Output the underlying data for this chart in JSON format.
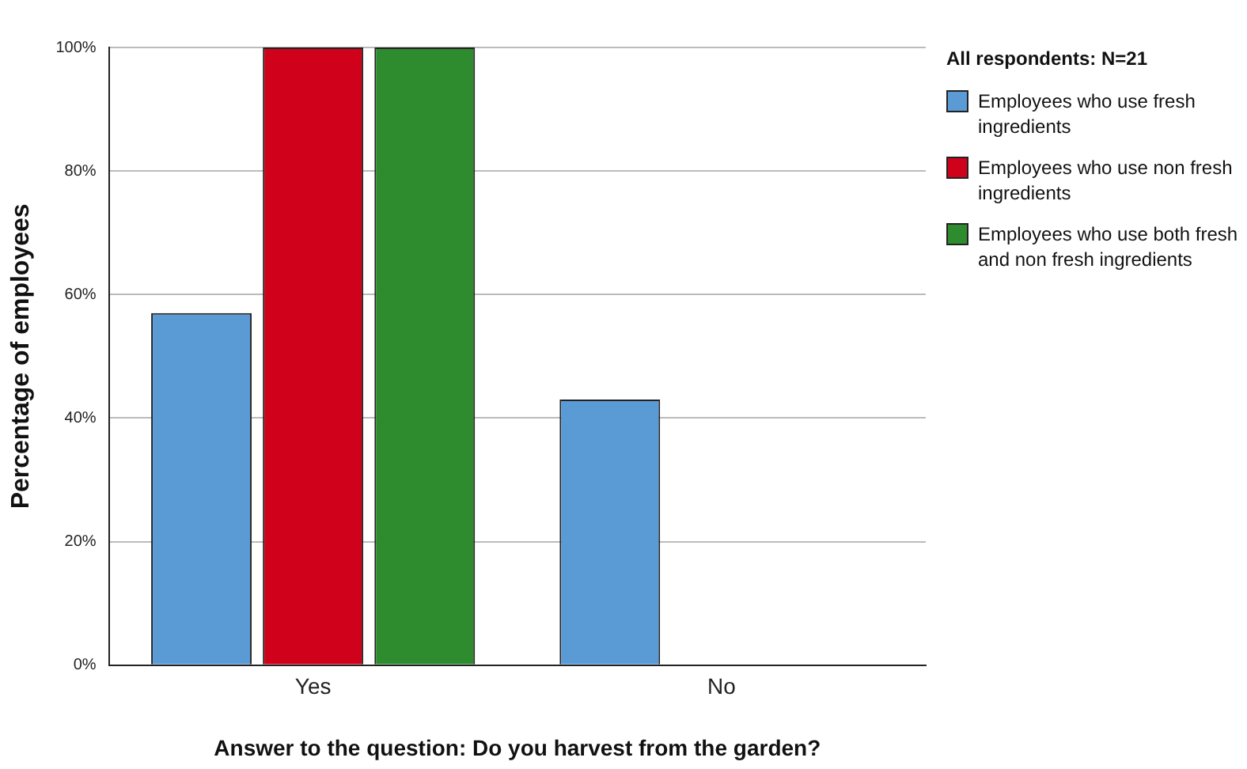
{
  "chart_data": {
    "type": "bar",
    "xlabel": "Answer to the question: Do you harvest from the garden?",
    "ylabel": "Percentage of employees",
    "legend_title": "All respondents: N=21",
    "categories": [
      "Yes",
      "No"
    ],
    "series": [
      {
        "name": "Employees who use fresh ingredients",
        "color": "#5b9bd5",
        "values": [
          57,
          43
        ]
      },
      {
        "name": "Employees who use non fresh ingredients",
        "color": "#d0021b",
        "values": [
          100,
          0
        ]
      },
      {
        "name": "Employees who use both fresh and non fresh ingredients",
        "color": "#2e8b2e",
        "values": [
          100,
          0
        ]
      }
    ],
    "ylim": [
      0,
      100
    ],
    "yticks": [
      {
        "value": 0,
        "label": "0%"
      },
      {
        "value": 20,
        "label": "20%"
      },
      {
        "value": 40,
        "label": "40%"
      },
      {
        "value": 60,
        "label": "60%"
      },
      {
        "value": 80,
        "label": "80%"
      },
      {
        "value": 100,
        "label": "100%"
      }
    ],
    "grid": "y",
    "legend": "top right"
  }
}
